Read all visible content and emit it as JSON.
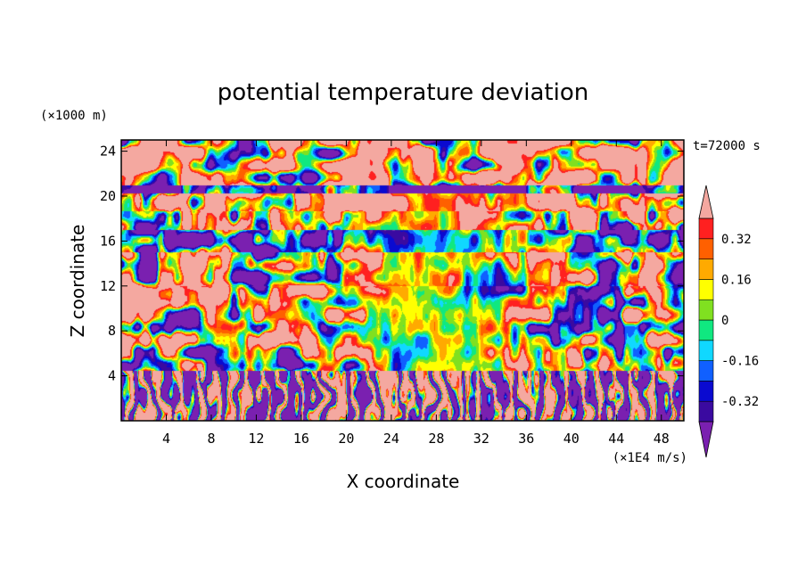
{
  "chart_data": {
    "type": "heatmap",
    "title": "potential temperature deviation",
    "xlabel": "X coordinate",
    "ylabel": "Z coordinate",
    "x_unit": "(×1E4 m/s)",
    "y_unit": "(×1000 m)",
    "time_label": "t=72000 s",
    "xlim": [
      0,
      50
    ],
    "ylim": [
      0,
      25
    ],
    "xticks": [
      4,
      8,
      12,
      16,
      20,
      24,
      28,
      32,
      36,
      40,
      44,
      48
    ],
    "yticks": [
      4,
      8,
      12,
      16,
      20,
      24
    ],
    "colorbar": {
      "levels": [
        -0.4,
        -0.32,
        -0.24,
        -0.16,
        -0.08,
        0,
        0.08,
        0.16,
        0.24,
        0.32,
        0.4
      ],
      "colors": [
        "#7a20b0",
        "#3a0aa0",
        "#0a0ad0",
        "#1060ff",
        "#10d8ff",
        "#10e880",
        "#80e020",
        "#ffff00",
        "#ffaa00",
        "#ff6000",
        "#ff2020",
        "#f4a8a0"
      ],
      "labels": [
        "0.32",
        "0.16",
        "0",
        "-0.16",
        "-0.32"
      ],
      "label_values": [
        0.32,
        0.16,
        0,
        -0.16,
        -0.32
      ]
    }
  }
}
